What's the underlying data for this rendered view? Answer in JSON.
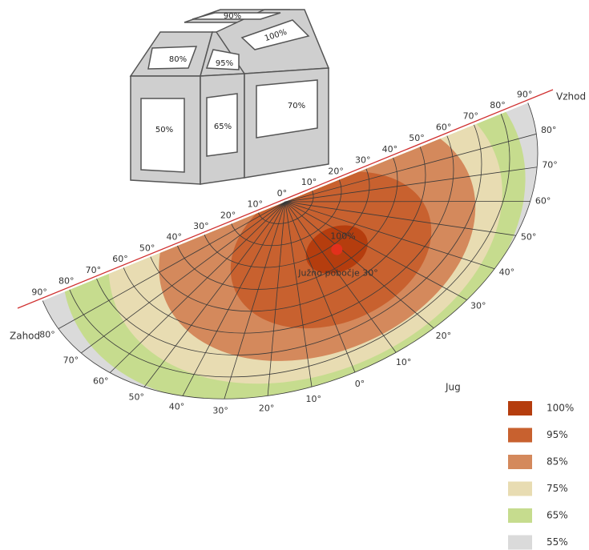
{
  "building": {
    "roof_back": "90%",
    "roof_left": "80%",
    "roof_middle": "95%",
    "roof_right": "100%",
    "wall_left": "50%",
    "wall_middle": "65%",
    "wall_right": "70%"
  },
  "diagram": {
    "east": "Vzhod",
    "west": "Zahod",
    "south": "Jug",
    "tilt_labels_east": [
      "0°",
      "10°",
      "20°",
      "30°",
      "40°",
      "50°",
      "60°",
      "70°",
      "80°",
      "90°"
    ],
    "tilt_labels_west": [
      "10°",
      "20°",
      "30°",
      "40°",
      "50°",
      "60°",
      "70°",
      "80°",
      "90°"
    ],
    "azimuth_labels": [
      "80°",
      "70°",
      "60°",
      "50°",
      "40°",
      "30°",
      "20°",
      "10°",
      "0°",
      "10°",
      "20°",
      "30°",
      "40°",
      "50°",
      "60°",
      "70°",
      "80°"
    ],
    "peak_label": "100%",
    "slope_label": "Južno pobočje 30°"
  },
  "legend": [
    {
      "label": "100%",
      "color": "#b53d0e"
    },
    {
      "label": "95%",
      "color": "#c8612f"
    },
    {
      "label": "85%",
      "color": "#d4895c"
    },
    {
      "label": "75%",
      "color": "#e8dcb2"
    },
    {
      "label": "65%",
      "color": "#c6dc8e"
    },
    {
      "label": "55%",
      "color": "#dadada"
    }
  ]
}
